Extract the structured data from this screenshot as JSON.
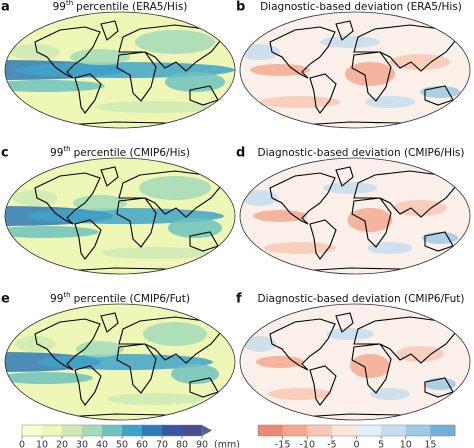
{
  "panels": [
    {
      "label": "a",
      "title": {
        "number": "99",
        "superscript": "th",
        "text": "percentile (ERA5/His)"
      }
    },
    {
      "label": "b",
      "title": "Diagnostic-based deviation (ERA5/His)"
    },
    {
      "label": "c",
      "title": {
        "number": "99",
        "superscript": "th",
        "text": "percentile (CMIP6/His)"
      }
    },
    {
      "label": "d",
      "title": "Diagnostic-based deviation (CMIP6/His)"
    },
    {
      "label": "e",
      "title": {
        "number": "99",
        "superscript": "th",
        "text": "percentile (CMIP6/Fut)"
      }
    },
    {
      "label": "f",
      "title": "Diagnostic-based deviation (CMIP6/Fut)"
    }
  ],
  "colorbars": [
    {
      "lim": [
        0,
        90
      ],
      "ticks": [
        0,
        10,
        20,
        30,
        40,
        50,
        60,
        70,
        80,
        90
      ],
      "unit": "(mm)",
      "extend": "max",
      "colors": [
        "#fcfdd0",
        "#eef7b6",
        "#cdeab4",
        "#a3dab8",
        "#6fc2c0",
        "#3fa3c8",
        "#2f7ab8",
        "#3756a0",
        "#4a4d8e",
        "#5a5e92"
      ]
    },
    {
      "lim": [
        -20,
        20
      ],
      "ticks": [
        -15,
        -10,
        -5,
        0,
        5,
        10,
        15
      ],
      "colors": [
        "#e98a74",
        "#f3a98f",
        "#f9c8b4",
        "#fde5da",
        "#e2eef7",
        "#c6ddef",
        "#9fc9e2",
        "#74afd6"
      ]
    }
  ]
}
